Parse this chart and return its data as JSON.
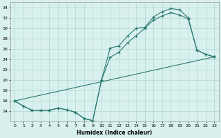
{
  "xlabel": "Humidex (Indice chaleur)",
  "bg_color": "#d8f0ee",
  "line_color": "#2a7a6a",
  "grid_color": "#b0d8d4",
  "xlim": [
    -0.5,
    23.5
  ],
  "ylim": [
    12,
    35
  ],
  "yticks": [
    14,
    16,
    18,
    20,
    22,
    24,
    26,
    28,
    30,
    32,
    34
  ],
  "xticks": [
    0,
    1,
    2,
    3,
    4,
    5,
    6,
    7,
    8,
    9,
    10,
    11,
    12,
    13,
    14,
    15,
    16,
    17,
    18,
    19,
    20,
    21,
    22,
    23
  ],
  "line1_x": [
    0,
    1,
    2,
    3,
    4,
    5,
    6,
    7,
    8,
    9,
    10,
    11,
    12,
    13,
    14,
    15,
    16,
    17,
    18,
    19,
    20,
    21,
    22,
    23
  ],
  "line1_y": [
    16.0,
    15.0,
    14.2,
    14.2,
    14.2,
    14.6,
    14.3,
    13.8,
    12.6,
    12.2,
    20.0,
    26.2,
    26.6,
    28.5,
    30.0,
    30.2,
    32.2,
    33.2,
    33.8,
    33.6,
    32.0,
    25.8,
    25.0,
    24.5
  ],
  "line2_x": [
    0,
    1,
    2,
    3,
    4,
    5,
    6,
    7,
    8,
    9,
    10,
    11,
    12,
    13,
    14,
    15,
    16,
    17,
    18,
    19,
    20,
    21,
    22,
    23
  ],
  "line2_y": [
    16.0,
    15.0,
    14.2,
    14.2,
    14.2,
    14.6,
    14.3,
    13.8,
    12.6,
    12.2,
    20.0,
    24.4,
    25.4,
    27.2,
    28.6,
    30.0,
    31.6,
    32.4,
    33.0,
    32.6,
    31.8,
    25.8,
    25.0,
    24.5
  ],
  "line3_x": [
    0,
    23
  ],
  "line3_y": [
    16.0,
    24.5
  ]
}
